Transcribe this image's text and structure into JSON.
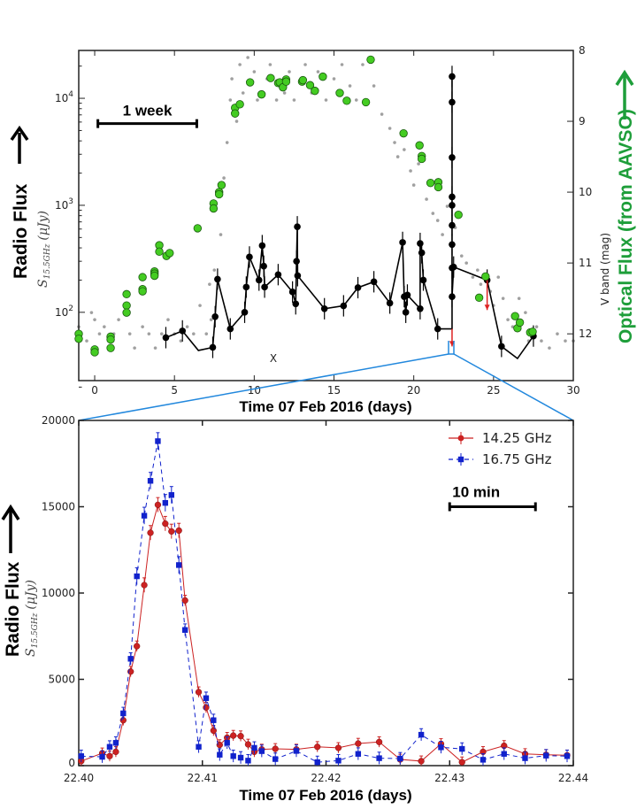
{
  "chart_data": [
    {
      "type": "scatter",
      "xlabel": "Time  07 Feb 2016 (days)",
      "ylabel": "S15.5GHz (μJy)",
      "ylabel_main": "S",
      "ylabel_sub": "15.5GHz",
      "ylabel_unit": "(μJy)",
      "side_label_left": "Radio Flux",
      "ylabel_right": "V band (mag)",
      "side_label_right": "Optical Flux (from AAVSO)",
      "xlim": [
        -1,
        30
      ],
      "ylim": [
        23,
        28000
      ],
      "yscale": "log",
      "ylim_right": [
        8,
        12.66
      ],
      "right_axis_inverted": true,
      "xticks": [
        "0",
        "5",
        "10",
        "15",
        "20",
        "25",
        "30"
      ],
      "yticks": [
        {
          "base": "10",
          "exp": "2"
        },
        {
          "base": "10",
          "exp": "3"
        },
        {
          "base": "10",
          "exp": "4"
        }
      ],
      "yticks_right": [
        "8",
        "9",
        "10",
        "11",
        "12"
      ],
      "scale_bar": {
        "label": "1 week",
        "from": 0.2,
        "to": 6.4,
        "flux": 5800
      },
      "annotation_x": "X",
      "colors": {
        "radio": "#000000",
        "aavso": "#44cc22",
        "gray": "#a0a0a0",
        "limit": "#dd2222",
        "zoom": "#2288dd"
      },
      "radio_yerr_dex": 0.1,
      "radio": [
        [
          4.46,
          58
        ],
        [
          5.5,
          67
        ],
        [
          6.5,
          44
        ],
        [
          7.4,
          47
        ],
        [
          7.55,
          91
        ],
        [
          7.7,
          204
        ],
        [
          8.5,
          70
        ],
        [
          9.4,
          100
        ],
        [
          9.5,
          172
        ],
        [
          9.7,
          329
        ],
        [
          10.3,
          200
        ],
        [
          10.5,
          420
        ],
        [
          10.6,
          270
        ],
        [
          10.65,
          172
        ],
        [
          11.5,
          225
        ],
        [
          12.4,
          155
        ],
        [
          12.6,
          120
        ],
        [
          12.65,
          300
        ],
        [
          12.7,
          630
        ],
        [
          12.72,
          220
        ],
        [
          14.4,
          108
        ],
        [
          15.6,
          115
        ],
        [
          16.5,
          170
        ],
        [
          17.5,
          193
        ],
        [
          18.5,
          122
        ],
        [
          19.3,
          450
        ],
        [
          19.4,
          140
        ],
        [
          19.5,
          100
        ],
        [
          19.6,
          145
        ],
        [
          20.4,
          108
        ],
        [
          20.4,
          440
        ],
        [
          20.5,
          360
        ],
        [
          20.6,
          200
        ],
        [
          21.5,
          70
        ],
        [
          22.4,
          70
        ],
        [
          22.4,
          16000
        ],
        [
          22.4,
          9200
        ],
        [
          22.4,
          2800
        ],
        [
          22.4,
          1200
        ],
        [
          22.4,
          1000
        ],
        [
          22.4,
          650
        ],
        [
          22.4,
          430
        ],
        [
          22.4,
          260
        ],
        [
          22.4,
          140
        ],
        [
          22.5,
          265
        ],
        [
          24.6,
          200
        ],
        [
          25.5,
          48
        ],
        [
          26.5,
          37
        ],
        [
          27.5,
          60
        ]
      ],
      "radio_no_marker": [
        [
          6.5,
          44
        ],
        [
          22.4,
          70
        ],
        [
          26.5,
          37
        ]
      ],
      "upper_limits": [
        [
          22.4,
          70,
          48
        ],
        [
          24.6,
          200,
          105
        ]
      ],
      "aavso": [
        [
          -1,
          12.0
        ],
        [
          -1,
          12.07
        ],
        [
          0,
          12.22
        ],
        [
          0,
          12.26
        ],
        [
          1,
          12.04
        ],
        [
          1,
          12.08
        ],
        [
          1,
          12.2
        ],
        [
          2,
          11.44
        ],
        [
          2,
          11.6
        ],
        [
          2,
          11.7
        ],
        [
          3,
          11.2
        ],
        [
          3,
          11.37
        ],
        [
          3,
          11.4
        ],
        [
          3.75,
          11.12
        ],
        [
          3.75,
          11.15
        ],
        [
          3.75,
          11.18
        ],
        [
          4.05,
          10.75
        ],
        [
          4.05,
          10.84
        ],
        [
          4.5,
          10.9
        ],
        [
          4.7,
          10.86
        ],
        [
          6.45,
          10.51
        ],
        [
          7.45,
          10.16
        ],
        [
          7.45,
          10.23
        ],
        [
          7.8,
          10.0
        ],
        [
          7.8,
          10.03
        ],
        [
          7.95,
          9.9
        ],
        [
          8.8,
          8.81
        ],
        [
          8.8,
          8.89
        ],
        [
          9.1,
          8.76
        ],
        [
          9.74,
          8.45
        ],
        [
          10.46,
          8.62
        ],
        [
          11.03,
          8.39
        ],
        [
          11.5,
          8.46
        ],
        [
          11.6,
          8.45
        ],
        [
          11.8,
          8.52
        ],
        [
          12.0,
          8.41
        ],
        [
          12.0,
          8.44
        ],
        [
          13.0,
          8.44
        ],
        [
          13.05,
          8.42
        ],
        [
          13.5,
          8.49
        ],
        [
          13.8,
          8.57
        ],
        [
          14.3,
          8.37
        ],
        [
          15.36,
          8.6
        ],
        [
          15.8,
          8.71
        ],
        [
          17.0,
          8.73
        ],
        [
          17.3,
          8.13
        ],
        [
          19.36,
          9.17
        ],
        [
          20.36,
          9.34
        ],
        [
          20.5,
          9.49
        ],
        [
          20.5,
          9.53
        ],
        [
          21.05,
          9.87
        ],
        [
          21.54,
          9.86
        ],
        [
          21.54,
          9.93
        ],
        [
          22.8,
          10.32
        ],
        [
          24.1,
          11.49
        ],
        [
          24.5,
          11.19
        ],
        [
          26.35,
          11.75
        ],
        [
          26.5,
          11.92
        ],
        [
          26.65,
          11.84
        ],
        [
          27.3,
          11.98
        ],
        [
          27.45,
          11.97
        ]
      ],
      "gray": [
        [
          -1,
          11.9
        ],
        [
          -0.5,
          12.1
        ],
        [
          -0.2,
          11.7
        ],
        [
          0,
          11.8
        ],
        [
          0.3,
          12.0
        ],
        [
          0.6,
          11.9
        ],
        [
          1.2,
          12.0
        ],
        [
          1.5,
          11.8
        ],
        [
          2.2,
          12.0
        ],
        [
          2.5,
          12.2
        ],
        [
          3.0,
          11.9
        ],
        [
          3.4,
          12.0
        ],
        [
          3.8,
          12.2
        ],
        [
          4.2,
          12.0
        ],
        [
          4.6,
          11.8
        ],
        [
          5.0,
          12.0
        ],
        [
          5.4,
          12.1
        ],
        [
          5.8,
          11.9
        ],
        [
          6.2,
          12.0
        ],
        [
          6.6,
          11.6
        ],
        [
          7.0,
          12.0
        ],
        [
          7.2,
          11.3
        ],
        [
          7.3,
          11.8
        ],
        [
          7.5,
          11.1
        ],
        [
          7.9,
          10.6
        ],
        [
          8.1,
          9.8
        ],
        [
          8.3,
          9.3
        ],
        [
          8.5,
          8.7
        ],
        [
          8.6,
          8.4
        ],
        [
          8.9,
          9.0
        ],
        [
          9.1,
          8.2
        ],
        [
          9.3,
          8.6
        ],
        [
          9.6,
          8.1
        ],
        [
          10.0,
          8.3
        ],
        [
          10.2,
          8.7
        ],
        [
          10.8,
          8.4
        ],
        [
          11.0,
          8.2
        ],
        [
          11.4,
          8.7
        ],
        [
          11.9,
          8.6
        ],
        [
          12.2,
          8.3
        ],
        [
          12.5,
          8.7
        ],
        [
          13.2,
          8.2
        ],
        [
          13.6,
          8.6
        ],
        [
          14.0,
          8.3
        ],
        [
          14.5,
          8.7
        ],
        [
          15.0,
          8.4
        ],
        [
          15.5,
          8.2
        ],
        [
          16.0,
          8.5
        ],
        [
          16.4,
          8.7
        ],
        [
          16.8,
          8.2
        ],
        [
          17.5,
          8.5
        ],
        [
          18.0,
          8.9
        ],
        [
          18.5,
          9.1
        ],
        [
          18.8,
          9.3
        ],
        [
          19.0,
          9.5
        ],
        [
          19.4,
          9.4
        ],
        [
          19.8,
          9.7
        ],
        [
          20.0,
          9.9
        ],
        [
          20.3,
          9.6
        ],
        [
          20.8,
          10.1
        ],
        [
          21.2,
          10.3
        ],
        [
          21.5,
          10.4
        ],
        [
          21.8,
          10.6
        ],
        [
          22.1,
          10.2
        ],
        [
          22.6,
          10.5
        ],
        [
          23.0,
          10.9
        ],
        [
          23.3,
          11.0
        ],
        [
          23.7,
          11.2
        ],
        [
          24.0,
          11.1
        ],
        [
          24.2,
          11.3
        ],
        [
          24.8,
          11.4
        ],
        [
          25.0,
          11.6
        ],
        [
          25.3,
          11.2
        ],
        [
          25.6,
          11.5
        ],
        [
          25.9,
          11.8
        ],
        [
          26.2,
          11.9
        ],
        [
          26.6,
          11.5
        ],
        [
          27.0,
          11.7
        ],
        [
          27.2,
          12.1
        ],
        [
          27.7,
          11.9
        ],
        [
          28.0,
          12.1
        ],
        [
          28.5,
          12.2
        ],
        [
          29.0,
          12.0
        ],
        [
          29.5,
          12.1
        ],
        [
          30,
          12.1
        ]
      ]
    },
    {
      "type": "line",
      "xlabel": "Time  07 Feb 2016 (days)",
      "ylabel_main": "S",
      "ylabel_sub": "15.5GHz",
      "ylabel_unit": "(μJy)",
      "side_label_left": "Radio Flux",
      "xlim": [
        22.4,
        22.44
      ],
      "ylim": [
        0,
        20000
      ],
      "xticks": [
        "22.40",
        "22.41",
        "22.42",
        "22.43",
        "22.44"
      ],
      "yticks": [
        "0",
        "5000",
        "10000",
        "15000",
        "20000"
      ],
      "legend": "top-right",
      "scale_bar": {
        "label": "10 min",
        "from": 22.43,
        "to": 22.43694,
        "y": 15000
      },
      "series": [
        {
          "name": "14.25 GHz",
          "color": "#cc2222",
          "marker": "circle",
          "linestyle": "solid",
          "yerr": 300,
          "x": [
            22.4002,
            22.4019,
            22.4025,
            22.403,
            22.4036,
            22.4042,
            22.4047,
            22.4053,
            22.4058,
            22.4064,
            22.407,
            22.4075,
            22.4081,
            22.4086,
            22.4097,
            22.4103,
            22.4109,
            22.4114,
            22.412,
            22.4125,
            22.4131,
            22.4137,
            22.4142,
            22.4148,
            22.4159,
            22.4176,
            22.4193,
            22.421,
            22.4226,
            22.4243,
            22.426,
            22.4277,
            22.4293,
            22.431,
            22.4327,
            22.4344,
            22.4361,
            22.4378,
            22.4395
          ],
          "y": [
            260,
            720,
            550,
            800,
            2630,
            5450,
            6920,
            10460,
            13490,
            15110,
            14020,
            13570,
            13620,
            9570,
            4260,
            3370,
            2030,
            1200,
            1620,
            1740,
            1710,
            1230,
            800,
            940,
            975,
            940,
            1090,
            1030,
            1280,
            1370,
            360,
            260,
            1260,
            200,
            800,
            1150,
            680,
            630,
            600
          ]
        },
        {
          "name": "16.75 GHz",
          "color": "#1122cc",
          "marker": "square",
          "linestyle": "dashed",
          "yerr": 350,
          "x": [
            22.4002,
            22.4019,
            22.4025,
            22.403,
            22.4036,
            22.4042,
            22.4047,
            22.4053,
            22.4058,
            22.4064,
            22.407,
            22.4075,
            22.4081,
            22.4086,
            22.4097,
            22.4103,
            22.4109,
            22.4114,
            22.412,
            22.4125,
            22.4131,
            22.4137,
            22.4142,
            22.4148,
            22.4159,
            22.4176,
            22.4193,
            22.421,
            22.4226,
            22.4243,
            22.426,
            22.4277,
            22.4293,
            22.431,
            22.4327,
            22.4344,
            22.4361,
            22.4378,
            22.4395
          ],
          "y": [
            550,
            510,
            1090,
            1320,
            3030,
            6190,
            10970,
            14480,
            16500,
            18800,
            15220,
            15680,
            11620,
            7860,
            1090,
            3910,
            2630,
            630,
            1320,
            550,
            460,
            290,
            1030,
            840,
            380,
            850,
            200,
            290,
            680,
            430,
            410,
            1790,
            1060,
            970,
            340,
            680,
            430,
            580,
            550
          ]
        }
      ]
    }
  ]
}
